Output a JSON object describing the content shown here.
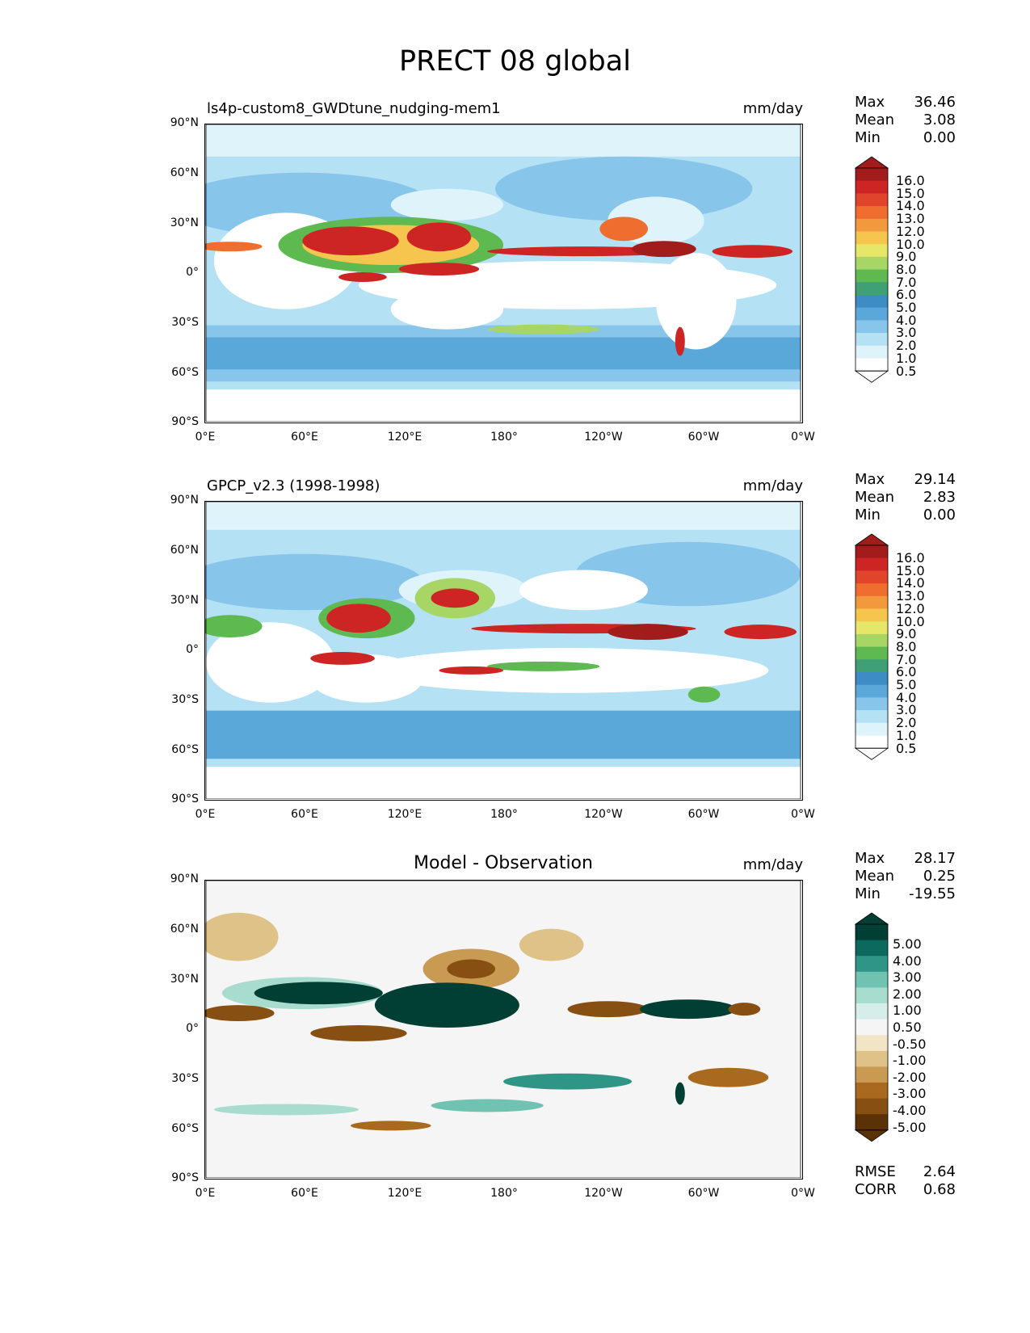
{
  "figure_title": "PRECT 08 global",
  "colors": {
    "precip": [
      "#ffffff",
      "#dff3fb",
      "#b5e1f5",
      "#87c5ea",
      "#5aa7d9",
      "#3d8cc6",
      "#3f9f77",
      "#5db950",
      "#a7d566",
      "#e6e668",
      "#f5c54e",
      "#f3993d",
      "#ee6d2f",
      "#e0452b",
      "#cd2424",
      "#a31c1c"
    ],
    "diff": [
      "#5a3206",
      "#875012",
      "#a9691f",
      "#c89a52",
      "#dfc287",
      "#f2e5c6",
      "#f5f5f5",
      "#d6eee9",
      "#a8dccf",
      "#70c3b1",
      "#2f9587",
      "#0b6a5d",
      "#013e33"
    ]
  },
  "panels": [
    {
      "name": "model",
      "left_title": "ls4p-custom8_GWDtune_nudging-mem1",
      "center_title": "",
      "units": "mm/day",
      "stats": [
        {
          "label": "Max",
          "value": "36.46"
        },
        {
          "label": "Mean",
          "value": "3.08"
        },
        {
          "label": "Min",
          "value": "0.00"
        }
      ],
      "colorbar_labels": [
        "16.0",
        "15.0",
        "14.0",
        "13.0",
        "12.0",
        "10.0",
        "9.0",
        "8.0",
        "7.0",
        "6.0",
        "5.0",
        "4.0",
        "3.0",
        "2.0",
        "1.0",
        "0.5"
      ]
    },
    {
      "name": "obs",
      "left_title": "GPCP_v2.3 (1998-1998)",
      "center_title": "",
      "units": "mm/day",
      "stats": [
        {
          "label": "Max",
          "value": "29.14"
        },
        {
          "label": "Mean",
          "value": "2.83"
        },
        {
          "label": "Min",
          "value": "0.00"
        }
      ],
      "colorbar_labels": [
        "16.0",
        "15.0",
        "14.0",
        "13.0",
        "12.0",
        "10.0",
        "9.0",
        "8.0",
        "7.0",
        "6.0",
        "5.0",
        "4.0",
        "3.0",
        "2.0",
        "1.0",
        "0.5"
      ]
    },
    {
      "name": "diff",
      "left_title": "",
      "center_title": "Model - Observation",
      "units": "mm/day",
      "stats": [
        {
          "label": "Max",
          "value": "28.17"
        },
        {
          "label": "Mean",
          "value": "0.25"
        },
        {
          "label": "Min",
          "value": "-19.55"
        }
      ],
      "colorbar_labels": [
        "5.00",
        "4.00",
        "3.00",
        "2.00",
        "1.00",
        "0.50",
        "-0.50",
        "-1.00",
        "-2.00",
        "-3.00",
        "-4.00",
        "-5.00"
      ],
      "metrics": [
        {
          "label": "RMSE",
          "value": "2.64"
        },
        {
          "label": "CORR",
          "value": "0.68"
        }
      ]
    }
  ],
  "lat_ticks": [
    "90°N",
    "60°N",
    "30°N",
    "0°",
    "30°S",
    "60°S",
    "90°S"
  ],
  "lon_ticks": [
    "0°E",
    "60°E",
    "120°E",
    "180°",
    "120°W",
    "60°W",
    "0°W"
  ]
}
